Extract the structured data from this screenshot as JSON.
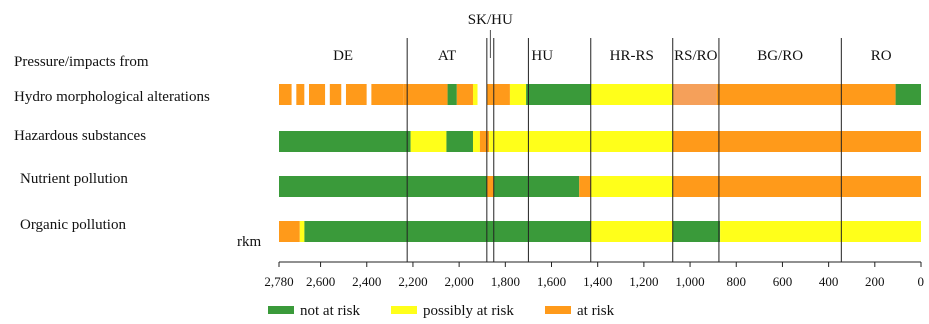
{
  "chart_data": {
    "type": "bar",
    "orientation": "horizontal-stacked",
    "title": "",
    "header_label": "Pressure/impacts from",
    "axis_unit_label": "rkm",
    "xlim": [
      2780,
      0
    ],
    "x_ticks": [
      2780,
      2600,
      2400,
      2200,
      2000,
      1800,
      1600,
      1400,
      1200,
      1000,
      800,
      600,
      400,
      200,
      0
    ],
    "x_tick_labels": [
      "2,780",
      "2,600",
      "2,400",
      "2,200",
      "2,000",
      "1,800",
      "1,600",
      "1,400",
      "1,200",
      "1,000",
      "800",
      "600",
      "400",
      "200",
      "0"
    ],
    "colors": {
      "not_at_risk": "#3a9a3a",
      "possibly_at_risk": "#ffff1a",
      "at_risk": "#ff9a1a",
      "at_risk_light": "#f5a05a",
      "gap": "#ffffff"
    },
    "legend": [
      {
        "key": "not_at_risk",
        "label": "not at risk"
      },
      {
        "key": "possibly_at_risk",
        "label": "possibly at risk"
      },
      {
        "key": "at_risk",
        "label": "at risk"
      }
    ],
    "regions": [
      {
        "label": "DE",
        "from": 2780,
        "to": 2225
      },
      {
        "label": "AT",
        "from": 2225,
        "to": 1880
      },
      {
        "label": "SK/HU",
        "from": 1880,
        "to": 1850
      },
      {
        "label": "HU",
        "from": 1850,
        "to": 1430
      },
      {
        "label": "HR-RS",
        "from": 1430,
        "to": 1075
      },
      {
        "label": "RS/RO",
        "from": 1075,
        "to": 875
      },
      {
        "label": "BG/RO",
        "from": 875,
        "to": 345
      },
      {
        "label": "RO",
        "from": 345,
        "to": 0
      }
    ],
    "region_boundaries": [
      2225,
      1880,
      1850,
      1700,
      1430,
      1075,
      875,
      345
    ],
    "categories": [
      "Hydro morphological alterations",
      "Hazardous substances",
      "Nutrient pollution",
      "Organic pollution"
    ],
    "segments": [
      [
        {
          "from": 2780,
          "to": 2725,
          "status": "at_risk"
        },
        {
          "from": 2725,
          "to": 2705,
          "status": "gap"
        },
        {
          "from": 2705,
          "to": 2670,
          "status": "at_risk"
        },
        {
          "from": 2670,
          "to": 2650,
          "status": "gap"
        },
        {
          "from": 2650,
          "to": 2580,
          "status": "at_risk"
        },
        {
          "from": 2580,
          "to": 2560,
          "status": "gap"
        },
        {
          "from": 2560,
          "to": 2510,
          "status": "at_risk"
        },
        {
          "from": 2510,
          "to": 2490,
          "status": "gap"
        },
        {
          "from": 2490,
          "to": 2400,
          "status": "at_risk"
        },
        {
          "from": 2400,
          "to": 2380,
          "status": "gap"
        },
        {
          "from": 2380,
          "to": 2240,
          "status": "at_risk"
        },
        {
          "from": 2240,
          "to": 2050,
          "status": "at_risk"
        },
        {
          "from": 2050,
          "to": 2010,
          "status": "not_at_risk"
        },
        {
          "from": 2010,
          "to": 1940,
          "status": "at_risk"
        },
        {
          "from": 1940,
          "to": 1920,
          "status": "possibly_at_risk"
        },
        {
          "from": 1920,
          "to": 1880,
          "status": "gap"
        },
        {
          "from": 1880,
          "to": 1780,
          "status": "at_risk"
        },
        {
          "from": 1780,
          "to": 1710,
          "status": "possibly_at_risk"
        },
        {
          "from": 1710,
          "to": 1430,
          "status": "not_at_risk"
        },
        {
          "from": 1430,
          "to": 1075,
          "status": "possibly_at_risk"
        },
        {
          "from": 1075,
          "to": 885,
          "status": "at_risk_light"
        },
        {
          "from": 885,
          "to": 110,
          "status": "at_risk"
        },
        {
          "from": 110,
          "to": 0,
          "status": "not_at_risk"
        }
      ],
      [
        {
          "from": 2780,
          "to": 2210,
          "status": "not_at_risk"
        },
        {
          "from": 2210,
          "to": 2055,
          "status": "possibly_at_risk"
        },
        {
          "from": 2055,
          "to": 1940,
          "status": "not_at_risk"
        },
        {
          "from": 1940,
          "to": 1910,
          "status": "possibly_at_risk"
        },
        {
          "from": 1910,
          "to": 1870,
          "status": "at_risk"
        },
        {
          "from": 1870,
          "to": 1075,
          "status": "possibly_at_risk"
        },
        {
          "from": 1075,
          "to": 0,
          "status": "at_risk"
        }
      ],
      [
        {
          "from": 2780,
          "to": 1880,
          "status": "not_at_risk"
        },
        {
          "from": 1880,
          "to": 1850,
          "status": "at_risk"
        },
        {
          "from": 1850,
          "to": 1480,
          "status": "not_at_risk"
        },
        {
          "from": 1480,
          "to": 1430,
          "status": "at_risk"
        },
        {
          "from": 1430,
          "to": 1075,
          "status": "possibly_at_risk"
        },
        {
          "from": 1075,
          "to": 0,
          "status": "at_risk"
        }
      ],
      [
        {
          "from": 2780,
          "to": 2690,
          "status": "at_risk"
        },
        {
          "from": 2690,
          "to": 2670,
          "status": "possibly_at_risk"
        },
        {
          "from": 2670,
          "to": 1430,
          "status": "not_at_risk"
        },
        {
          "from": 1430,
          "to": 1075,
          "status": "possibly_at_risk"
        },
        {
          "from": 1075,
          "to": 870,
          "status": "not_at_risk"
        },
        {
          "from": 870,
          "to": 0,
          "status": "possibly_at_risk"
        }
      ]
    ]
  }
}
